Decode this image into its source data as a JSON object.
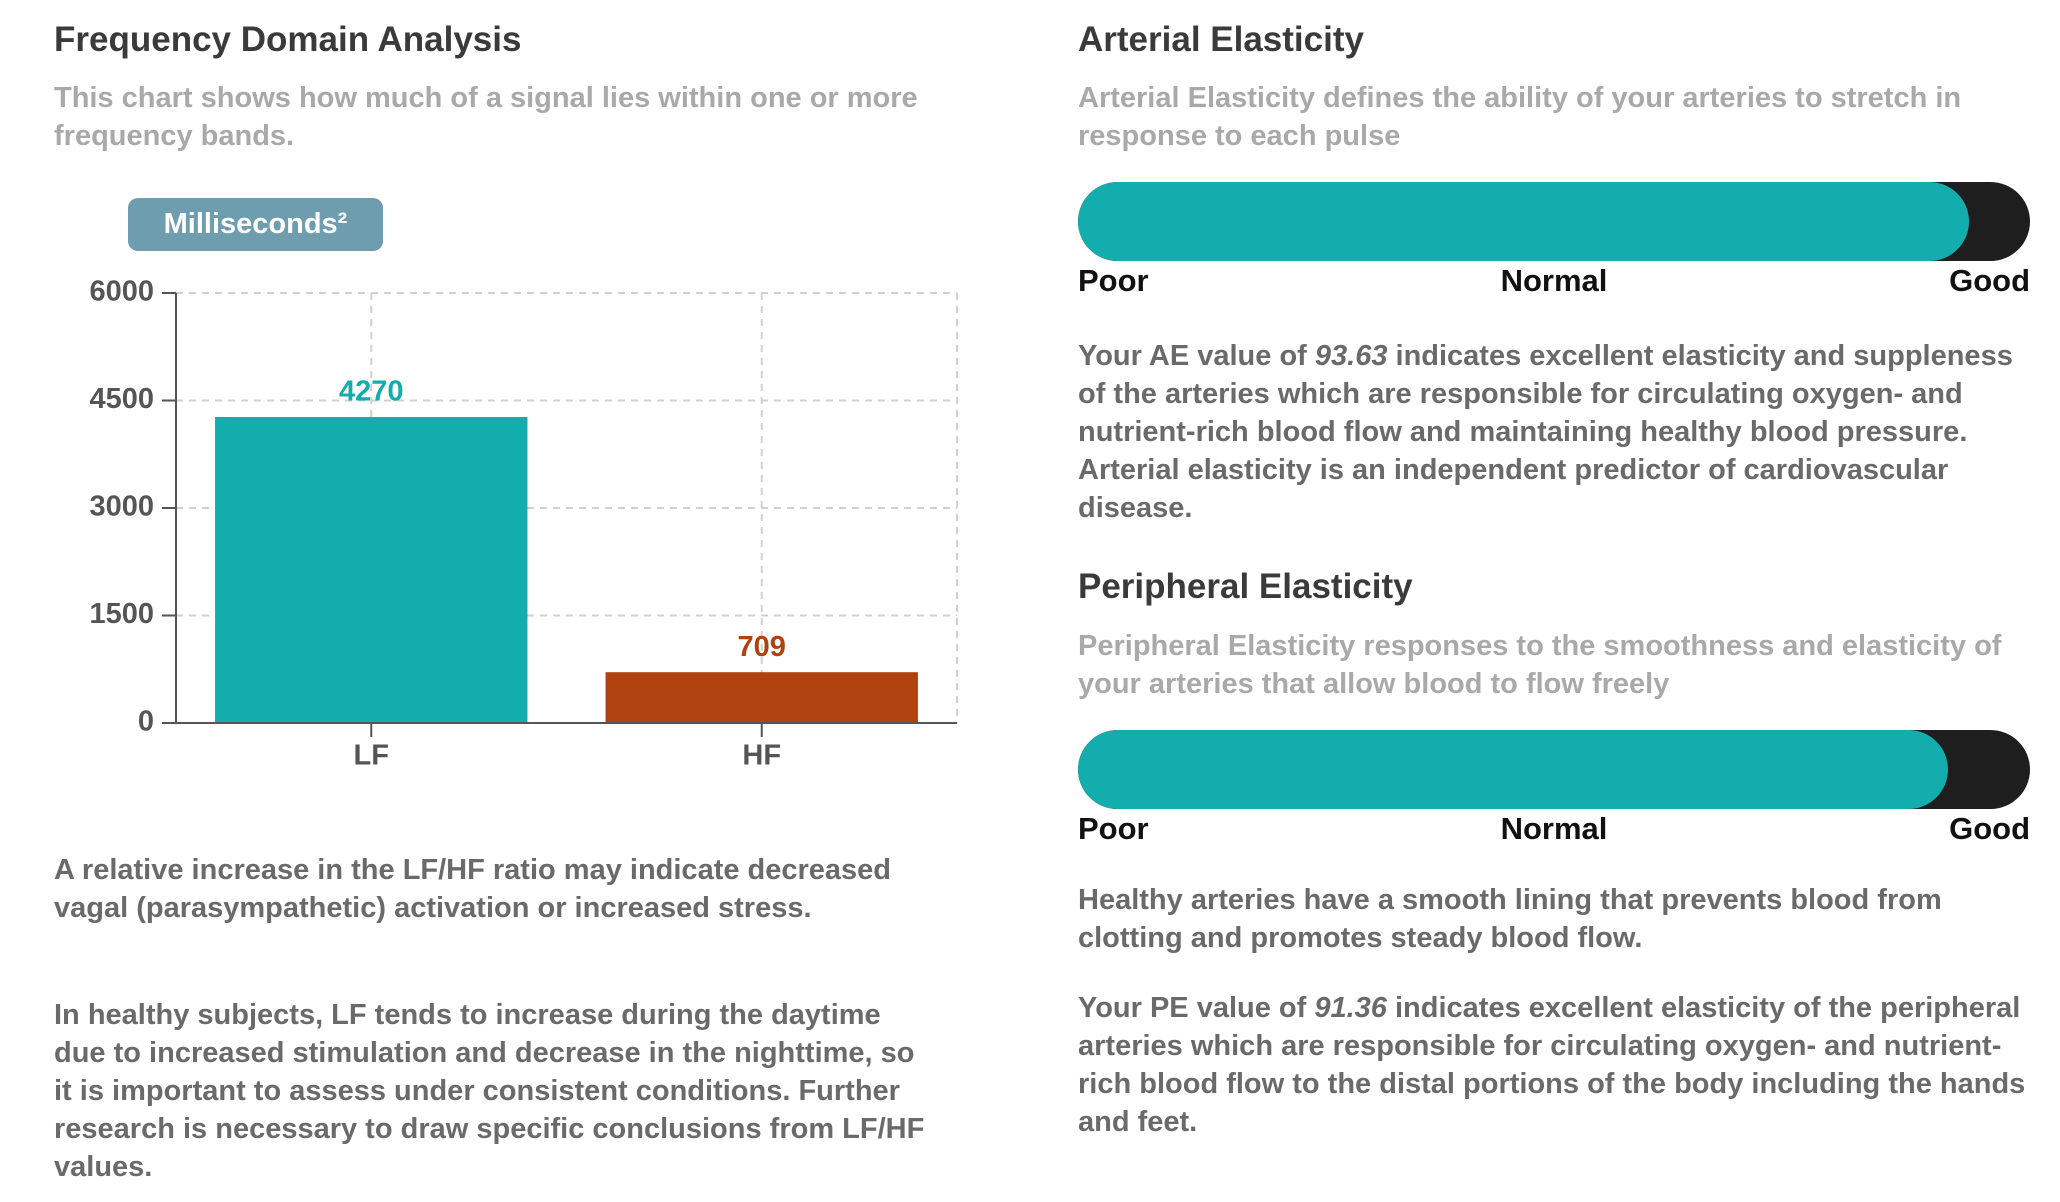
{
  "left": {
    "title": "Frequency Domain Analysis",
    "subtitle": "This chart shows how much of a signal lies within one or more frequency bands.",
    "notes": [
      "A relative increase in the LF/HF ratio may indicate decreased vagal (parasympathetic) activation or increased stress.",
      "In healthy subjects, LF tends to increase during the daytime due to increased stimulation and decrease in the nighttime, so it is important to assess under consistent conditions. Further research is necessary to draw specific conclusions from LF/HF values."
    ]
  },
  "chart_data": {
    "type": "bar",
    "y_label": "Milliseconds²",
    "categories": [
      "LF",
      "HF"
    ],
    "values": [
      4270,
      709
    ],
    "colors": [
      "#14adad",
      "#b0420f"
    ],
    "ylim": [
      0,
      6000
    ],
    "yticks": [
      0,
      1500,
      3000,
      4500,
      6000
    ],
    "grid": true
  },
  "right": {
    "sections": [
      {
        "title": "Arterial Elasticity",
        "subtitle": "Arterial Elasticity defines the ability of your arteries to stretch in response to each pulse",
        "scale_labels": [
          "Poor",
          "Normal",
          "Good"
        ],
        "scale": [
          0,
          100
        ],
        "text_before": "Your AE value of ",
        "value": 93.63,
        "text_after": " indicates excellent elasticity and suppleness of the arteries which are responsible for circulating oxygen- and nutrient-rich blood flow and maintaining healthy blood pressure. Arterial elasticity is an independent predictor of cardiovascular disease."
      },
      {
        "title": "Peripheral Elasticity",
        "subtitle": "Peripheral Elasticity responses to the smoothness and elasticity of your arteries that allow blood to flow freely",
        "scale_labels": [
          "Poor",
          "Normal",
          "Good"
        ],
        "scale": [
          0,
          100
        ],
        "intro": "Healthy arteries have a smooth lining that prevents blood from clotting and promotes steady blood flow.",
        "text_before": "Your PE value of ",
        "value": 91.36,
        "text_after": " indicates excellent elasticity of the peripheral arteries which are responsible for circulating oxygen- and nutrient-rich blood flow to the distal portions of the body including the hands and feet."
      }
    ]
  }
}
